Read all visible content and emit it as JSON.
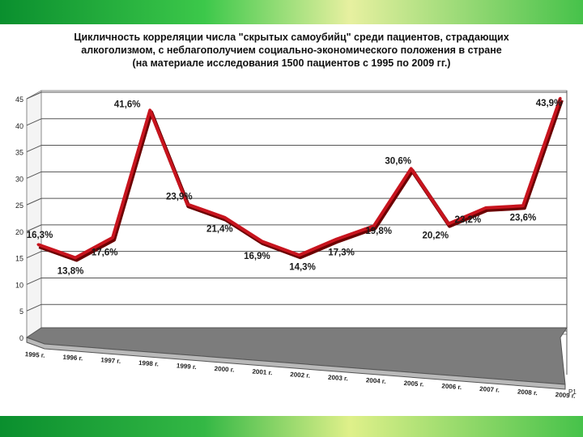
{
  "slide": {
    "band_top_colors": [
      "#0a8f2e",
      "#3cc84a",
      "#e7f0a0",
      "#46c24a"
    ],
    "band_bottom_colors": [
      "#0a8f2e",
      "#34b845",
      "#dff08a",
      "#46c24a"
    ]
  },
  "chart_data": {
    "type": "line",
    "title": [
      "Цикличность корреляции числа \"скрытых самоубийц\" среди пациентов, страдающих",
      "алкоголизмом, с неблагополучием социально-экономического положения в стране",
      "(на материале исследования 1500 пациентов с 1995 по 2009 гг.)"
    ],
    "categories": [
      "1995 г.",
      "1996 г.",
      "1997 г.",
      "1998 г.",
      "1999 г.",
      "2000 г.",
      "2001 г.",
      "2002 г.",
      "2003 г.",
      "2004 г.",
      "2005 г.",
      "2006 г.",
      "2007 г.",
      "2008 г.",
      "2009 г."
    ],
    "values": [
      16.3,
      13.8,
      17.6,
      41.6,
      23.9,
      21.4,
      16.9,
      14.3,
      17.3,
      19.8,
      30.6,
      20.2,
      23.2,
      23.6,
      43.9
    ],
    "data_labels": [
      "16,3%",
      "13,8%",
      "17,6%",
      "41,6%",
      "23,9%",
      "21,4%",
      "16,9%",
      "14,3%",
      "17,3%",
      "19,8%",
      "30,6%",
      "20,2%",
      "23,2%",
      "23,6%",
      "43,9%"
    ],
    "y_ticks": [
      0,
      5,
      10,
      15,
      20,
      25,
      30,
      35,
      40,
      45
    ],
    "ylim": [
      0,
      45
    ],
    "series_label": "Р1",
    "line_color": "#c8141e",
    "grid": true,
    "legend": "none"
  }
}
